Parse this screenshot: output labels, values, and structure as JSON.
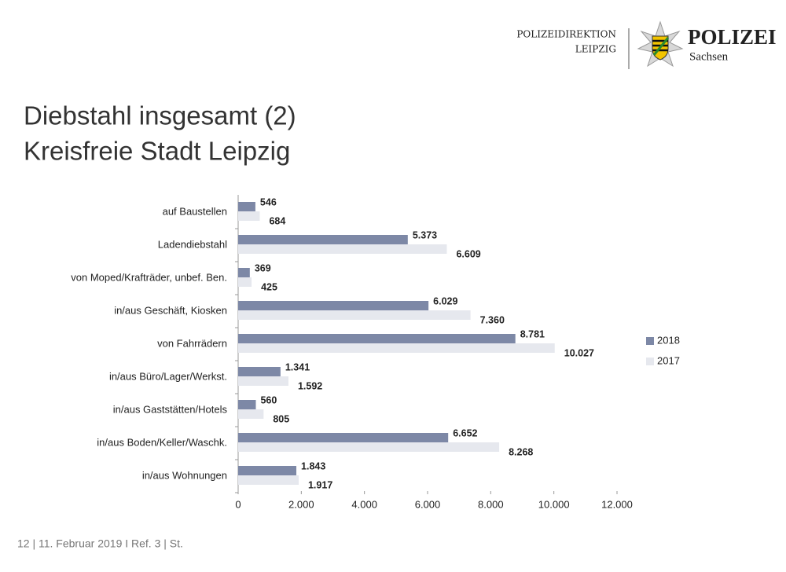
{
  "header": {
    "unit": "POLIZEIDIREKTION",
    "city": "LEIPZIG",
    "brand": "POLIZEI",
    "state": "Sachsen"
  },
  "footer": "12  |  11. Februar 2019  I Ref. 3 | St.",
  "chart_data": {
    "type": "bar",
    "orientation": "horizontal",
    "title": "Diebstahl insgesamt (2)",
    "subtitle": "Kreisfreie Stadt Leipzig",
    "categories": [
      "auf Baustellen",
      "Ladendiebstahl",
      "von Moped/Krafträder, unbef. Ben.",
      "in/aus Geschäft, Kiosken",
      "von Fahrrädern",
      "in/aus Büro/Lager/Werkst.",
      "in/aus Gaststätten/Hotels",
      "in/aus Boden/Keller/Waschk.",
      "in/aus Wohnungen"
    ],
    "series": [
      {
        "name": "2018",
        "color": "#7d88a6",
        "values": [
          546,
          5373,
          369,
          6029,
          8781,
          1341,
          560,
          6652,
          1843
        ],
        "value_labels": [
          "546",
          "5.373",
          "369",
          "6.029",
          "8.781",
          "1.341",
          "560",
          "6.652",
          "1.843"
        ]
      },
      {
        "name": "2017",
        "color": "#e6e8ee",
        "values": [
          684,
          6609,
          425,
          7360,
          10027,
          1592,
          805,
          8268,
          1917
        ],
        "value_labels": [
          "684",
          "6.609",
          "425",
          "7.360",
          "10.027",
          "1.592",
          "805",
          "8.268",
          "1.917"
        ]
      }
    ],
    "xlim": [
      0,
      12000
    ],
    "xticks": [
      0,
      {
        "value": 2000,
        "label": "2.000"
      },
      {
        "value": 4000,
        "label": "4.000"
      },
      {
        "value": 6000,
        "label": "6.000"
      },
      {
        "value": 8000,
        "label": "8.000"
      },
      {
        "value": 10000,
        "label": "10.000"
      },
      {
        "value": 12000,
        "label": "12.000"
      }
    ],
    "legend": "right"
  }
}
